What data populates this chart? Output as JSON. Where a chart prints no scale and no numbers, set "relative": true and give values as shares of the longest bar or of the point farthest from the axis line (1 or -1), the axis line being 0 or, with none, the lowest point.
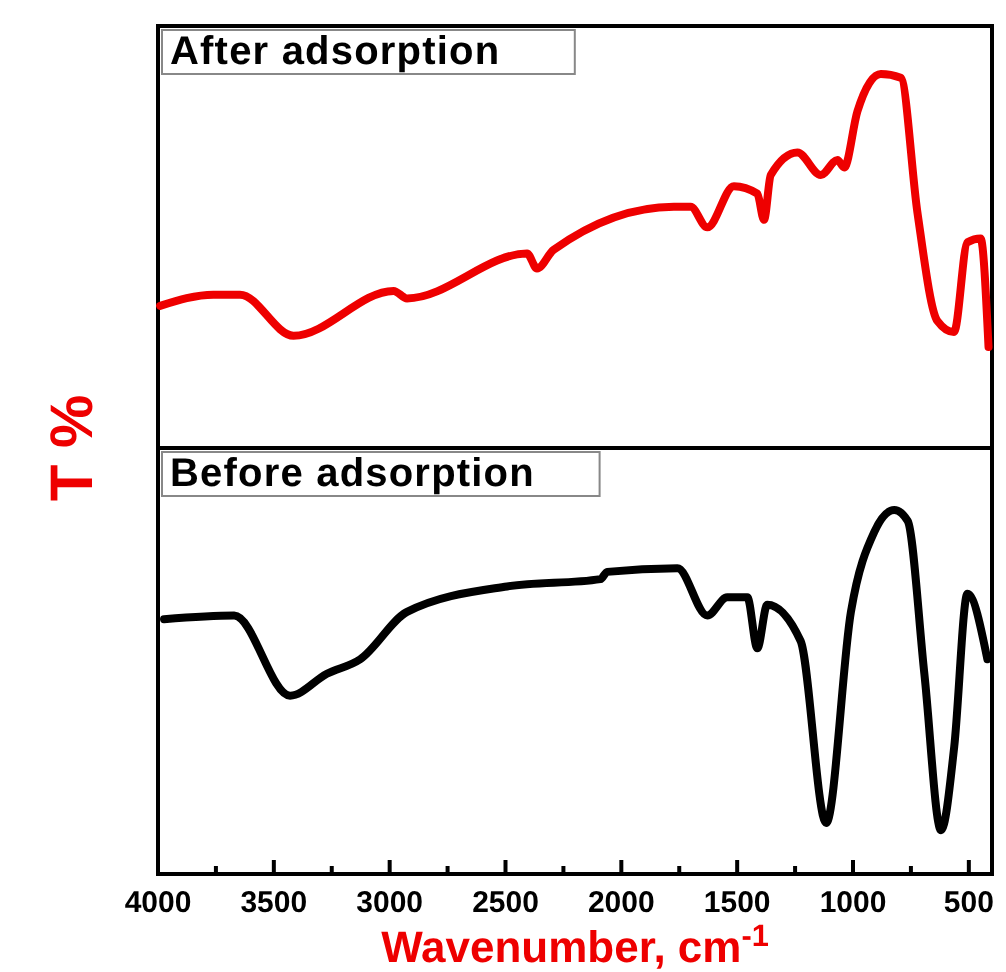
{
  "chart_data": [
    {
      "type": "line",
      "title": "After adsorption",
      "ylabel": "T %",
      "relative": true,
      "xlim": [
        4000,
        400
      ],
      "tick_labels": false,
      "line_style": "solid",
      "marker": "none",
      "series": [
        {
          "color": "#ee0000",
          "x": [
            3991,
            3761,
            3646,
            3415,
            2983,
            2925,
            2407,
            2364,
            2292,
            1773,
            1701,
            1629,
            1514,
            1413,
            1384,
            1355,
            1240,
            1139,
            1067,
            1038,
            981,
            880,
            794,
            722,
            636,
            564,
            506,
            449,
            415
          ],
          "values": [
            0.38,
            0.41,
            0.41,
            0.3,
            0.42,
            0.4,
            0.52,
            0.48,
            0.53,
            0.645,
            0.645,
            0.59,
            0.7,
            0.68,
            0.61,
            0.73,
            0.79,
            0.73,
            0.77,
            0.75,
            0.9,
            1.0,
            0.99,
            0.63,
            0.34,
            0.31,
            0.55,
            0.56,
            0.27
          ]
        }
      ]
    },
    {
      "type": "line",
      "title": "Before adsorption",
      "xlabel": "Wavenumber, cm$^{-1}$",
      "relative": true,
      "xlim": [
        4000,
        400
      ],
      "tick_labels": "x",
      "line_style": "solid",
      "marker": "none",
      "xticks": [
        4000,
        {
          "value": 3750,
          "label": null
        },
        3500,
        {
          "value": 3250,
          "label": null
        },
        3000,
        {
          "value": 2750,
          "label": null
        },
        2500,
        {
          "value": 2250,
          "label": null
        },
        2000,
        {
          "value": 1750,
          "label": null
        },
        1500,
        {
          "value": 1250,
          "label": null
        },
        1000,
        {
          "value": 750,
          "label": null
        },
        500
      ],
      "series": [
        {
          "color": "#000000",
          "x": [
            3974,
            3671,
            3430,
            3271,
            3127,
            2925,
            2493,
            2090,
            2061,
            1758,
            1629,
            1543,
            1456,
            1413,
            1370,
            1226,
            1116,
            1009,
            908,
            822,
            764,
            692,
            620,
            563,
            506,
            420
          ],
          "values": [
            0.7,
            0.71,
            0.49,
            0.55,
            0.59,
            0.72,
            0.79,
            0.81,
            0.83,
            0.84,
            0.71,
            0.76,
            0.76,
            0.62,
            0.74,
            0.64,
            0.14,
            0.72,
            0.94,
            1.0,
            0.97,
            0.55,
            0.12,
            0.35,
            0.77,
            0.59
          ]
        }
      ]
    }
  ]
}
